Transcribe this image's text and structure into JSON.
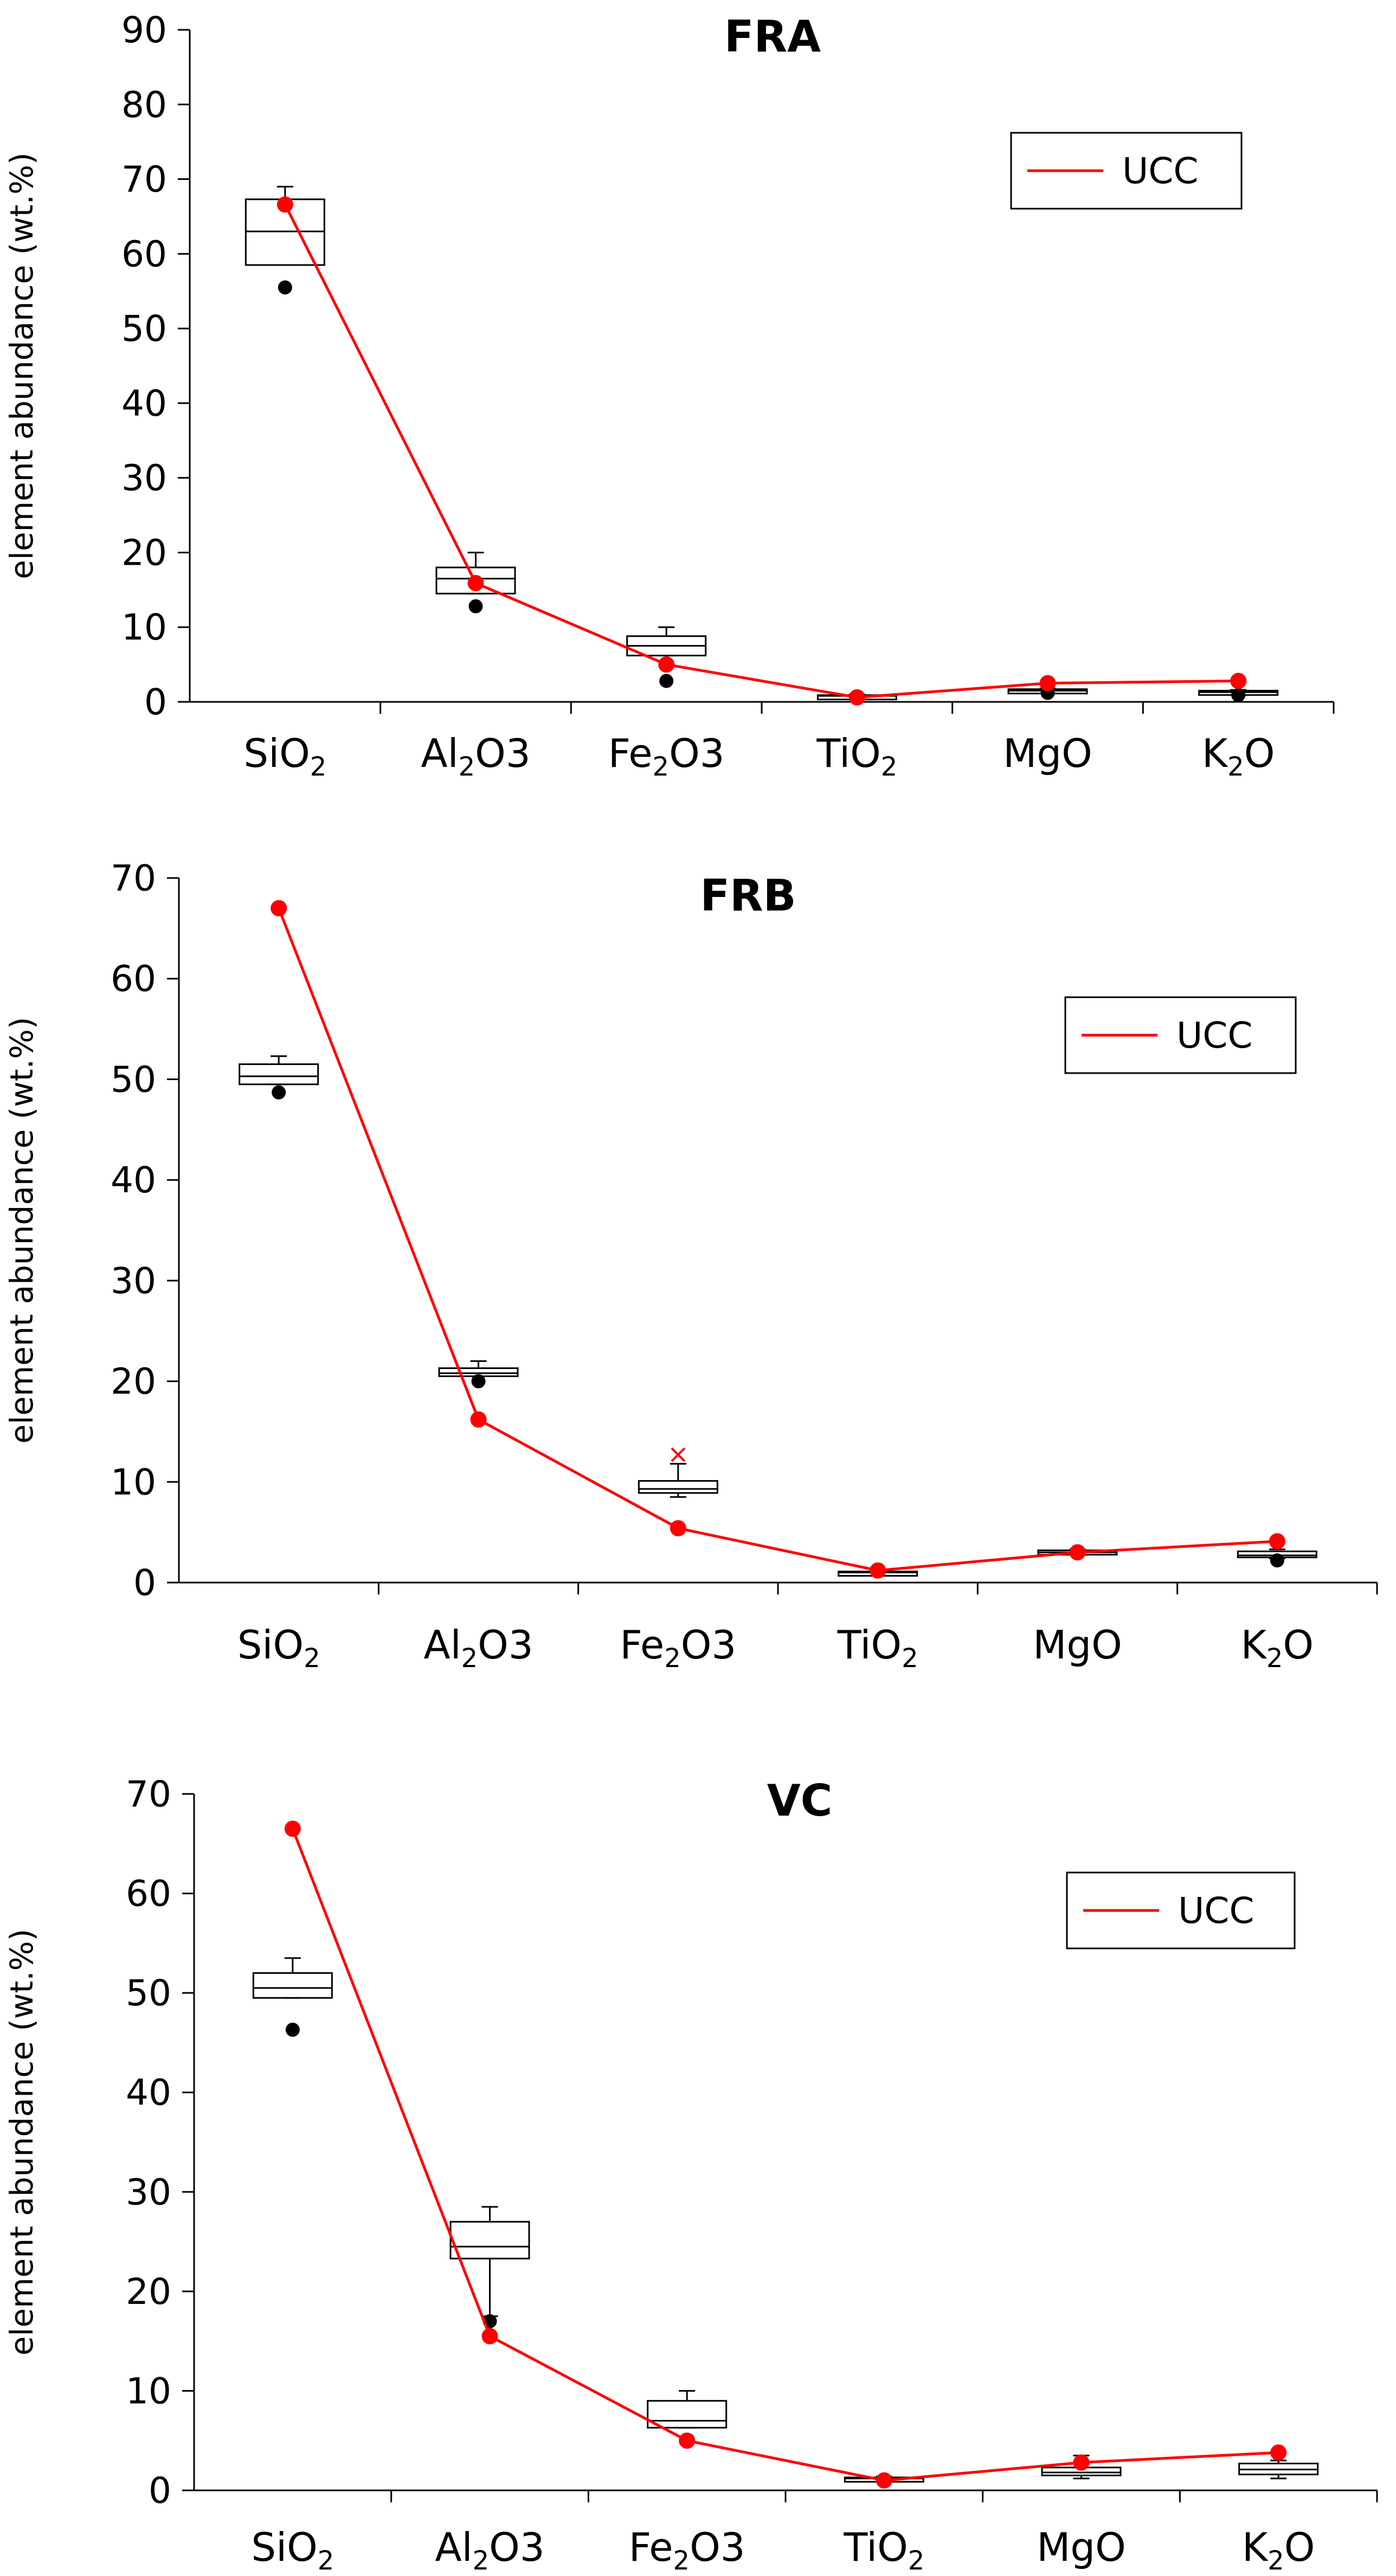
{
  "chart_data": [
    {
      "type": "box",
      "title": "FRA",
      "ylabel": "element abundance (wt.%)",
      "xlabel": "",
      "ylim": [
        0,
        90
      ],
      "yticks": [
        "0",
        "10",
        "20",
        "30",
        "40",
        "50",
        "60",
        "70",
        "80",
        "90"
      ],
      "categories": [
        {
          "label": "SiO2",
          "base": "SiO",
          "sub": "2",
          "tail": ""
        },
        {
          "label": "Al2O3",
          "base": "Al",
          "sub": "2",
          "tail": "O3"
        },
        {
          "label": "Fe2O3",
          "base": "Fe",
          "sub": "2",
          "tail": "O3"
        },
        {
          "label": "TiO2",
          "base": "TiO",
          "sub": "2",
          "tail": ""
        },
        {
          "label": "MgO",
          "base": "MgO",
          "sub": "",
          "tail": ""
        },
        {
          "label": "K2O",
          "base": "K",
          "sub": "2",
          "tail": "O"
        }
      ],
      "boxes": [
        {
          "min": 58.5,
          "q1": 58.5,
          "median": 63,
          "q3": 67.3,
          "max": 69,
          "outliers": [
            55.5
          ]
        },
        {
          "min": 14.5,
          "q1": 14.5,
          "median": 16.5,
          "q3": 18,
          "max": 20,
          "outliers": [
            12.8
          ]
        },
        {
          "min": 6.2,
          "q1": 6.2,
          "median": 7.5,
          "q3": 8.8,
          "max": 10,
          "outliers": [
            2.8
          ]
        },
        {
          "min": 0.5,
          "q1": 0.6,
          "median": 0.8,
          "q3": 0.9,
          "max": 1.0,
          "outliers": []
        },
        {
          "min": 1.2,
          "q1": 1.4,
          "median": 1.5,
          "q3": 1.7,
          "max": 1.8,
          "outliers": [
            1.2
          ]
        },
        {
          "min": 1.0,
          "q1": 1.1,
          "median": 1.3,
          "q3": 1.5,
          "max": 1.6,
          "outliers": [
            0.9
          ]
        }
      ],
      "series": [
        {
          "name": "UCC",
          "color": "#ff0000",
          "values": [
            66.6,
            15.9,
            5.0,
            0.6,
            2.5,
            2.8
          ]
        }
      ],
      "legend": {
        "label": "UCC",
        "position": "top-right"
      }
    },
    {
      "type": "box",
      "title": "FRB",
      "ylabel": "element abundance (wt.%)",
      "xlabel": "",
      "ylim": [
        0,
        70
      ],
      "yticks": [
        "0",
        "10",
        "20",
        "30",
        "40",
        "50",
        "60",
        "70"
      ],
      "categories": [
        {
          "label": "SiO2",
          "base": "SiO",
          "sub": "2",
          "tail": ""
        },
        {
          "label": "Al2O3",
          "base": "Al",
          "sub": "2",
          "tail": "O3"
        },
        {
          "label": "Fe2O3",
          "base": "Fe",
          "sub": "2",
          "tail": "O3"
        },
        {
          "label": "TiO2",
          "base": "TiO",
          "sub": "2",
          "tail": ""
        },
        {
          "label": "MgO",
          "base": "MgO",
          "sub": "",
          "tail": ""
        },
        {
          "label": "K2O",
          "base": "K",
          "sub": "2",
          "tail": "O"
        }
      ],
      "boxes": [
        {
          "min": 49.5,
          "q1": 49.5,
          "median": 50.3,
          "q3": 51.5,
          "max": 52.3,
          "outliers": [
            48.7
          ]
        },
        {
          "min": 20.5,
          "q1": 20.5,
          "median": 20.8,
          "q3": 21.3,
          "max": 22.0,
          "outliers": [
            20.0
          ]
        },
        {
          "min": 8.5,
          "q1": 8.9,
          "median": 9.3,
          "q3": 10.1,
          "max": 11.8,
          "outliers": [
            12.7
          ]
        },
        {
          "min": 0.8,
          "q1": 0.9,
          "median": 1.0,
          "q3": 1.1,
          "max": 1.2,
          "outliers": []
        },
        {
          "min": 2.8,
          "q1": 2.9,
          "median": 3.0,
          "q3": 3.2,
          "max": 3.3,
          "outliers": []
        },
        {
          "min": 2.4,
          "q1": 2.5,
          "median": 2.7,
          "q3": 3.1,
          "max": 3.3,
          "outliers": [
            2.2
          ]
        }
      ],
      "series": [
        {
          "name": "UCC",
          "color": "#ff0000",
          "values": [
            67.0,
            16.2,
            5.4,
            1.2,
            3.0,
            4.1
          ]
        }
      ],
      "legend": {
        "label": "UCC",
        "position": "top-right"
      }
    },
    {
      "type": "box",
      "title": "VC",
      "ylabel": "element abundance (wt.%)",
      "xlabel": "",
      "ylim": [
        0,
        70
      ],
      "yticks": [
        "0",
        "10",
        "20",
        "30",
        "40",
        "50",
        "60",
        "70"
      ],
      "categories": [
        {
          "label": "SiO2",
          "base": "SiO",
          "sub": "2",
          "tail": ""
        },
        {
          "label": "Al2O3",
          "base": "Al",
          "sub": "2",
          "tail": "O3"
        },
        {
          "label": "Fe2O3",
          "base": "Fe",
          "sub": "2",
          "tail": "O3"
        },
        {
          "label": "TiO2",
          "base": "TiO",
          "sub": "2",
          "tail": ""
        },
        {
          "label": "MgO",
          "base": "MgO",
          "sub": "",
          "tail": ""
        },
        {
          "label": "K2O",
          "base": "K",
          "sub": "2",
          "tail": "O"
        }
      ],
      "boxes": [
        {
          "min": 49.5,
          "q1": 49.5,
          "median": 50.5,
          "q3": 52,
          "max": 53.5,
          "outliers": [
            46.3
          ]
        },
        {
          "min": 17.5,
          "q1": 23.3,
          "median": 24.5,
          "q3": 27,
          "max": 28.5,
          "outliers": [
            17.0
          ]
        },
        {
          "min": 6.3,
          "q1": 6.3,
          "median": 7.0,
          "q3": 9.0,
          "max": 10.0,
          "outliers": []
        },
        {
          "min": 1.0,
          "q1": 1.1,
          "median": 1.2,
          "q3": 1.3,
          "max": 1.4,
          "outliers": []
        },
        {
          "min": 1.2,
          "q1": 1.5,
          "median": 1.8,
          "q3": 2.3,
          "max": 3.5,
          "outliers": []
        },
        {
          "min": 1.2,
          "q1": 1.6,
          "median": 2.1,
          "q3": 2.7,
          "max": 3.0,
          "outliers": []
        }
      ],
      "series": [
        {
          "name": "UCC",
          "color": "#ff0000",
          "values": [
            66.5,
            15.5,
            5.0,
            1.0,
            2.8,
            3.8
          ]
        }
      ],
      "legend": {
        "label": "UCC",
        "position": "top-right"
      }
    }
  ]
}
